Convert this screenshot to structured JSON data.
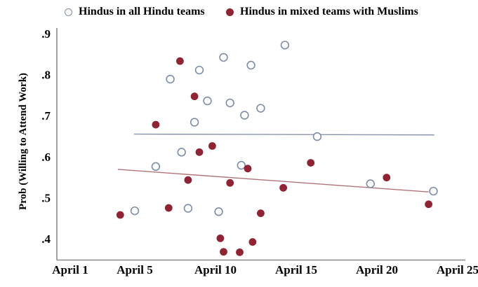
{
  "legend": {
    "items": [
      {
        "label": "Hindus in all Hindu teams",
        "marker": "open-circle"
      },
      {
        "label": "Hindus in mixed teams with Muslims",
        "marker": "filled-circle"
      }
    ]
  },
  "colors": {
    "open_marker_stroke": "#7e8da6",
    "filled_marker_fill": "#8e2434",
    "all_hindu_trend_line": "#8995ad",
    "mixed_trend_line": "#b3737a",
    "axis": "#8a8a8a",
    "text": "#000000",
    "background": "#ffffff"
  },
  "chart_data": {
    "type": "scatter",
    "title": "",
    "xlabel": "",
    "ylabel": "Prob (Willing to Attend Work)",
    "x_unit": "day of April",
    "xlim": [
      0.2,
      25.6
    ],
    "ylim": [
      0.345,
      0.915
    ],
    "grid": false,
    "legend_position": "top",
    "x_ticks": [
      {
        "label": "April 1",
        "day": 1
      },
      {
        "label": "April 5",
        "day": 5
      },
      {
        "label": "April 10",
        "day": 10
      },
      {
        "label": "April 15",
        "day": 15
      },
      {
        "label": "April 20",
        "day": 20
      },
      {
        "label": "April 25",
        "day": 25
      }
    ],
    "y_ticks": [
      {
        "label": ".9",
        "value": 0.9
      },
      {
        "label": ".8",
        "value": 0.8
      },
      {
        "label": ".7",
        "value": 0.7
      },
      {
        "label": ".6",
        "value": 0.6
      },
      {
        "label": ".5",
        "value": 0.5
      },
      {
        "label": ".4",
        "value": 0.4
      }
    ],
    "series": [
      {
        "name": "Hindus in all Hindu teams",
        "marker": "open-circle",
        "color": "#7e8da6",
        "points": [
          [
            5.0,
            0.468
          ],
          [
            6.3,
            0.576
          ],
          [
            7.2,
            0.789
          ],
          [
            7.9,
            0.611
          ],
          [
            8.3,
            0.474
          ],
          [
            8.7,
            0.684
          ],
          [
            9.0,
            0.811
          ],
          [
            9.5,
            0.736
          ],
          [
            10.2,
            0.466
          ],
          [
            10.5,
            0.842
          ],
          [
            10.9,
            0.731
          ],
          [
            11.6,
            0.579
          ],
          [
            11.8,
            0.701
          ],
          [
            12.2,
            0.823
          ],
          [
            12.8,
            0.718
          ],
          [
            14.3,
            0.872
          ],
          [
            16.3,
            0.649
          ],
          [
            19.6,
            0.534
          ],
          [
            23.5,
            0.516
          ]
        ]
      },
      {
        "name": "Hindus in mixed teams with Muslims",
        "marker": "filled-circle",
        "color": "#8e2434",
        "points": [
          [
            4.1,
            0.458
          ],
          [
            6.3,
            0.678
          ],
          [
            7.1,
            0.475
          ],
          [
            7.8,
            0.833
          ],
          [
            8.3,
            0.543
          ],
          [
            8.7,
            0.747
          ],
          [
            9.0,
            0.611
          ],
          [
            9.8,
            0.626
          ],
          [
            10.3,
            0.401
          ],
          [
            10.5,
            0.368
          ],
          [
            10.9,
            0.536
          ],
          [
            11.5,
            0.367
          ],
          [
            12.0,
            0.571
          ],
          [
            12.3,
            0.392
          ],
          [
            12.8,
            0.462
          ],
          [
            14.2,
            0.524
          ],
          [
            15.9,
            0.585
          ],
          [
            20.6,
            0.549
          ],
          [
            23.2,
            0.484
          ]
        ]
      }
    ],
    "trend_lines": [
      {
        "series": "Hindus in all Hindu teams",
        "color": "#8995ad",
        "x1": 4.95,
        "y1": 0.655,
        "x2": 23.55,
        "y2": 0.653
      },
      {
        "series": "Hindus in mixed teams with Muslims",
        "color": "#b3737a",
        "x1": 3.95,
        "y1": 0.569,
        "x2": 23.2,
        "y2": 0.514
      }
    ]
  }
}
